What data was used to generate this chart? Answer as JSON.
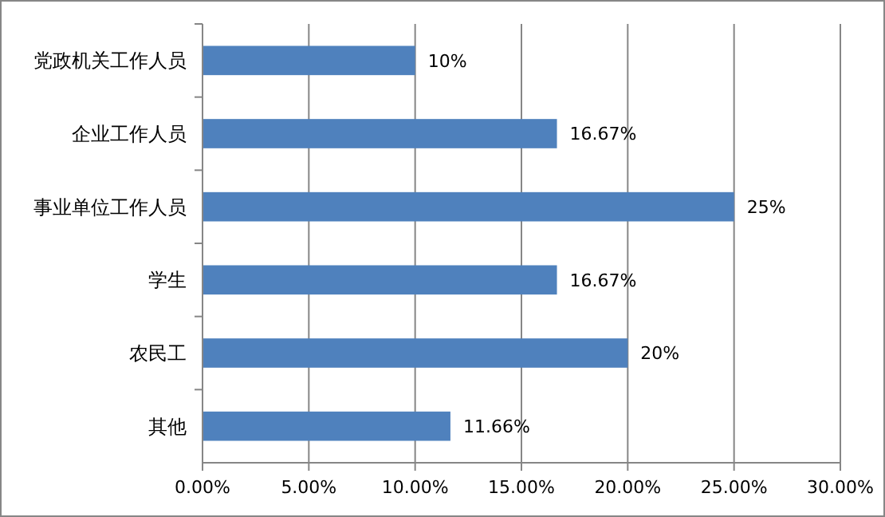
{
  "chart_data": {
    "type": "bar",
    "orientation": "horizontal",
    "categories": [
      "党政机关工作人员",
      "企业工作人员",
      "事业单位工作人员",
      "学生",
      "农民工",
      "其他"
    ],
    "values": [
      10,
      16.67,
      25,
      16.67,
      20,
      11.66
    ],
    "value_labels": [
      "10%",
      "16.67%",
      "25%",
      "16.67%",
      "20%",
      "11.66%"
    ],
    "color": "#4f81bd",
    "xlim": [
      0,
      30
    ],
    "xticks": [
      {
        "value": 0,
        "label": "0.00%"
      },
      {
        "value": 5,
        "label": "5.00%"
      },
      {
        "value": 10,
        "label": "10.00%"
      },
      {
        "value": 15,
        "label": "15.00%"
      },
      {
        "value": 20,
        "label": "20.00%"
      },
      {
        "value": 25,
        "label": "25.00%"
      },
      {
        "value": 30,
        "label": "30.00%"
      }
    ],
    "grid": "x"
  }
}
